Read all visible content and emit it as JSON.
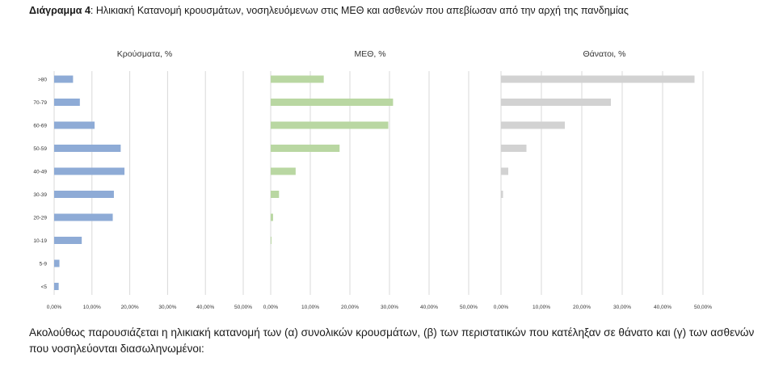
{
  "caption": {
    "label": "Διάγραμμα 4",
    "text": ": Ηλικιακή Κατανομή κρουσμάτων, νοσηλευόμενων στις ΜΕΘ και ασθενών που απεβίωσαν από την αρχή της πανδημίας"
  },
  "paragraph": "Ακολούθως παρουσιάζεται η ηλικιακή κατανομή των (α) συνολικών κρουσμάτων, (β) των περιστατικών που κατέληξαν σε θάνατο και (γ) των ασθενών που νοσηλεύονται διασωληνωμένοι:",
  "chart_data": [
    {
      "type": "bar",
      "orientation": "horizontal",
      "title": "Κρούσματα, %",
      "categories": [
        ">80",
        "70-79",
        "60-69",
        "50-59",
        "40-49",
        "30-39",
        "20-29",
        "10-19",
        "5-9",
        "<5"
      ],
      "values": [
        5.0,
        6.8,
        10.7,
        17.6,
        18.6,
        15.8,
        15.5,
        7.3,
        1.4,
        1.2
      ],
      "xlim": [
        0,
        50
      ],
      "xticks": [
        "0,00%",
        "10,00%",
        "20,00%",
        "30,00%",
        "40,00%",
        "50,00%"
      ],
      "color": "#8eabd6",
      "grid": true
    },
    {
      "type": "bar",
      "orientation": "horizontal",
      "title": "ΜΕΘ, %",
      "categories": [
        ">80",
        "70-79",
        "60-69",
        "50-59",
        "40-49",
        "30-39",
        "20-29",
        "10-19",
        "5-9",
        "<5"
      ],
      "values": [
        13.4,
        30.9,
        29.7,
        17.4,
        6.3,
        2.1,
        0.6,
        0.2,
        0,
        0
      ],
      "xlim": [
        0,
        50
      ],
      "xticks": [
        "0,00%",
        "10,00%",
        "20,00%",
        "30,00%",
        "40,00%",
        "50,00%"
      ],
      "color": "#b9d7a2",
      "grid": true
    },
    {
      "type": "bar",
      "orientation": "horizontal",
      "title": "Θάνατοι, %",
      "categories": [
        ">80",
        "70-79",
        "60-69",
        "50-59",
        "40-49",
        "30-39",
        "20-29",
        "10-19",
        "5-9",
        "<5"
      ],
      "values": [
        47.9,
        27.2,
        15.8,
        6.3,
        1.8,
        0.5,
        0,
        0,
        0,
        0
      ],
      "xlim": [
        0,
        50
      ],
      "xticks": [
        "0,00%",
        "10,00%",
        "20,00%",
        "30,00%",
        "40,00%",
        "50,00%"
      ],
      "color": "#d2d2d2",
      "grid": true
    }
  ]
}
